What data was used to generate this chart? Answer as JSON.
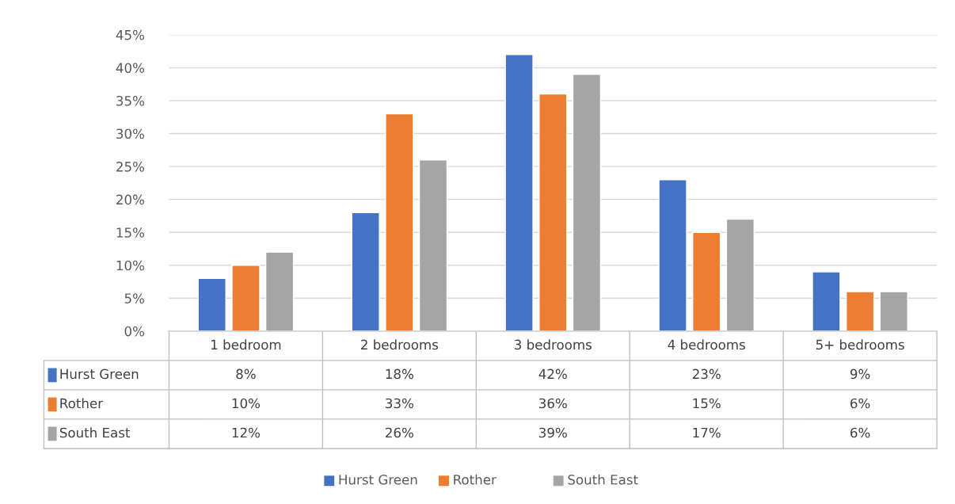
{
  "chart_data": {
    "type": "bar",
    "categories": [
      "1 bedroom",
      "2 bedrooms",
      "3 bedrooms",
      "4 bedrooms",
      "5+ bedrooms"
    ],
    "series": [
      {
        "name": "Hurst Green",
        "color": "#4472c4",
        "values": [
          8,
          18,
          42,
          23,
          9
        ],
        "value_labels": [
          "8%",
          "18%",
          "42%",
          "23%",
          "9%"
        ]
      },
      {
        "name": "Rother",
        "color": "#ed7d31",
        "values": [
          10,
          33,
          36,
          15,
          6
        ],
        "value_labels": [
          "10%",
          "33%",
          "36%",
          "15%",
          "6%"
        ]
      },
      {
        "name": "South East",
        "color": "#a5a5a5",
        "values": [
          12,
          26,
          39,
          17,
          6
        ],
        "value_labels": [
          "12%",
          "26%",
          "39%",
          "17%",
          "6%"
        ]
      }
    ],
    "ylim": [
      0,
      45
    ],
    "yticks": [
      {
        "value": 0,
        "label": "0%"
      },
      {
        "value": 5,
        "label": "5%"
      },
      {
        "value": 10,
        "label": "10%"
      },
      {
        "value": 15,
        "label": "15%"
      },
      {
        "value": 20,
        "label": "20%"
      },
      {
        "value": 25,
        "label": "25%"
      },
      {
        "value": 30,
        "label": "30%"
      },
      {
        "value": 35,
        "label": "35%"
      },
      {
        "value": 40,
        "label": "40%"
      },
      {
        "value": 45,
        "label": "45%"
      }
    ],
    "grid": "y",
    "legend": "bottom"
  }
}
